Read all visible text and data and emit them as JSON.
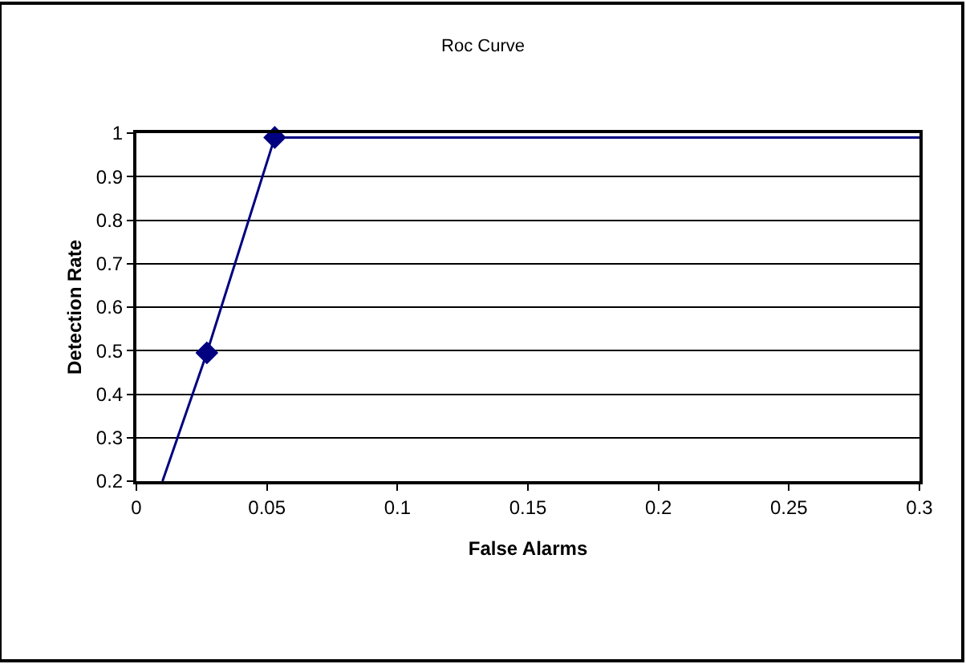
{
  "chart_data": {
    "type": "line",
    "title": "Roc Curve",
    "xlabel": "False Alarms",
    "ylabel": "Detection Rate",
    "series": [
      {
        "color": "#000080",
        "x": [
          0.01,
          0.027,
          0.053,
          0.3
        ],
        "values": [
          0.2,
          0.495,
          0.99,
          0.99
        ],
        "marker": "none"
      },
      {
        "type": "scatter",
        "color": "#000080",
        "x": [
          0.027,
          0.053
        ],
        "values": [
          0.495,
          0.99
        ],
        "marker": "diamond"
      }
    ],
    "xlim": [
      0,
      0.3
    ],
    "xticks": [
      0,
      0.05,
      0.1,
      0.15,
      0.2,
      0.25,
      0.3
    ],
    "ylim": [
      0.2,
      1
    ],
    "yticks": [
      0.2,
      0.3,
      0.4,
      0.5,
      0.6,
      0.7,
      0.8,
      0.9,
      1
    ],
    "grid": "y",
    "line_style": "solid"
  }
}
